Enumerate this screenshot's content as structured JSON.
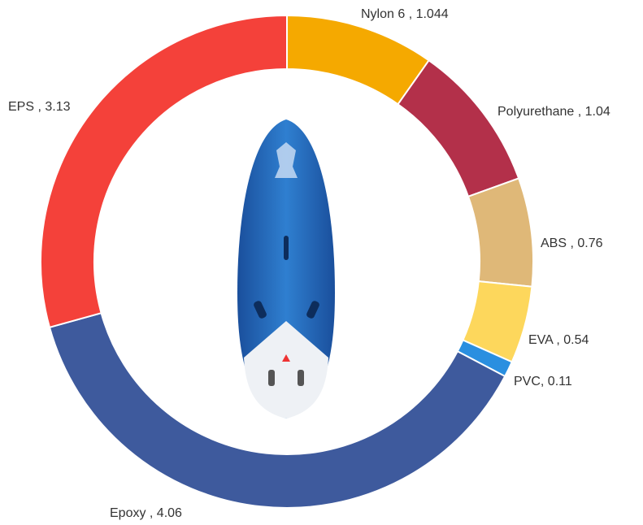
{
  "chart_data": {
    "type": "donut",
    "value_labels": [
      "Nylon 6 , 1.044",
      "Polyurethane , 1.04",
      "ABS , 0.76",
      "EVA , 0.54",
      "PVC, 0.11",
      "Epoxy , 4.06",
      "EPS , 3.13"
    ],
    "values": [
      1.044,
      1.04,
      0.76,
      0.54,
      0.11,
      4.06,
      3.13
    ],
    "colors": [
      "#f5a900",
      "#b3304a",
      "#dfb878",
      "#fdd75c",
      "#2a8fe0",
      "#3e5a9d",
      "#f4413a"
    ]
  }
}
